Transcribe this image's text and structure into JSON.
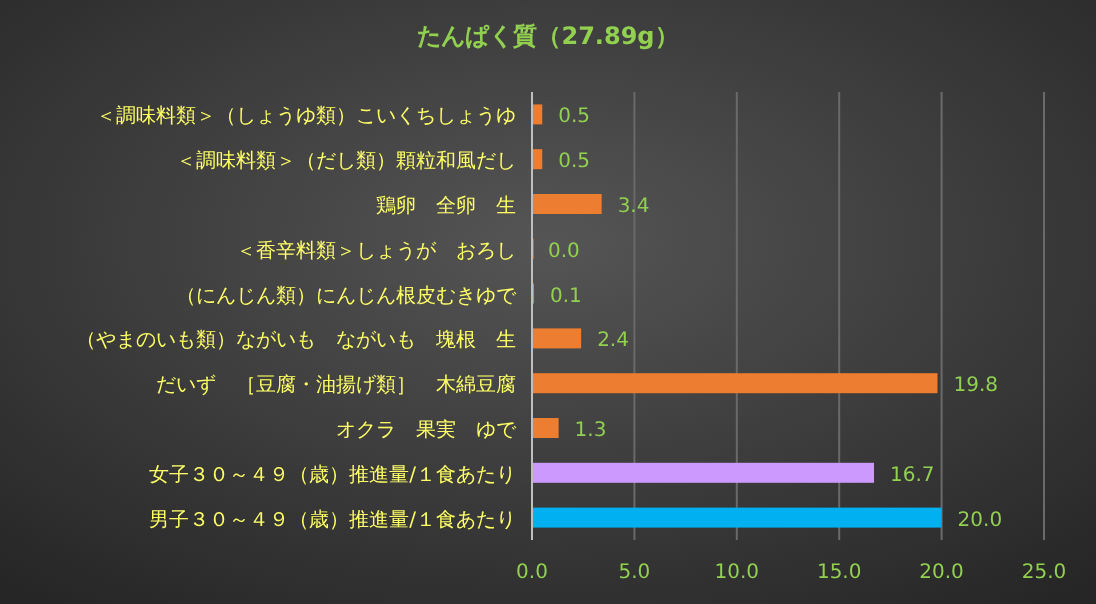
{
  "chart_data": {
    "type": "bar",
    "orientation": "horizontal",
    "title": "たんぱく質（27.89g）",
    "categories": [
      "＜調味料類＞（しょうゆ類）こいくちしょうゆ",
      "＜調味料類＞（だし類）顆粒和風だし",
      "鶏卵　全卵　生",
      "＜香辛料類＞しょうが　おろし",
      "（にんじん類）にんじん根皮むきゆで",
      "（やまのいも類）ながいも　ながいも　塊根　生",
      "だいず　［豆腐・油揚げ類］　木綿豆腐",
      "オクラ　果実　ゆで",
      "女子３０～４９（歳）推進量/１食あたり",
      "男子３０～４９（歳）推進量/１食あたり"
    ],
    "values": [
      0.5,
      0.5,
      3.4,
      0.0,
      0.1,
      2.4,
      19.8,
      1.3,
      16.7,
      20.0
    ],
    "value_labels": [
      "0.5",
      "0.5",
      "3.4",
      "0.0",
      "0.1",
      "2.4",
      "19.8",
      "1.3",
      "16.7",
      "20.0"
    ],
    "colors": [
      "#ed7d31",
      "#ed7d31",
      "#ed7d31",
      "#ed7d31",
      "#ed7d31",
      "#ed7d31",
      "#ed7d31",
      "#ed7d31",
      "#cc99ff",
      "#00b0f0"
    ],
    "xlim": [
      0,
      25
    ],
    "xticks": [
      {
        "value": 0,
        "label": "0.0"
      },
      {
        "value": 5,
        "label": "5.0"
      },
      {
        "value": 10,
        "label": "10.0"
      },
      {
        "value": 15,
        "label": "15.0"
      },
      {
        "value": 20,
        "label": "20.0"
      },
      {
        "value": 25,
        "label": "25.0"
      }
    ],
    "grid": "x"
  }
}
